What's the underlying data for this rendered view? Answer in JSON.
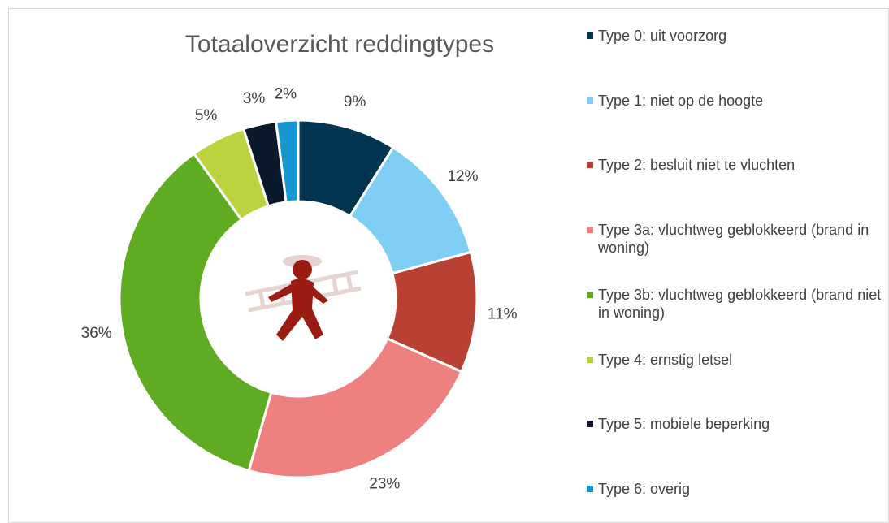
{
  "chart_data": {
    "type": "doughnut",
    "title": "Totaaloverzicht reddingtypes",
    "categories": [
      "Type 0: uit voorzorg",
      "Type 1: niet op de hoogte",
      "Type 2: besluit niet te vluchten",
      "Type 3a: vluchtweg geblokkeerd (brand in woning)",
      "Type 3b: vluchtweg geblokkeerd (brand niet in woning)",
      "Type 4: ernstig letsel",
      "Type 5: mobiele beperking",
      "Type 6: overig"
    ],
    "values": [
      9,
      12,
      11,
      23,
      36,
      5,
      3,
      2
    ],
    "value_labels": [
      "9%",
      "12%",
      "11%",
      "23%",
      "36%",
      "5%",
      "3%",
      "2%"
    ],
    "colors": [
      "#003450",
      "#7fcff5",
      "#b94134",
      "#ee8080",
      "#5fab21",
      "#bcd33f",
      "#0a1a2c",
      "#1796d0"
    ],
    "legend": "right"
  }
}
